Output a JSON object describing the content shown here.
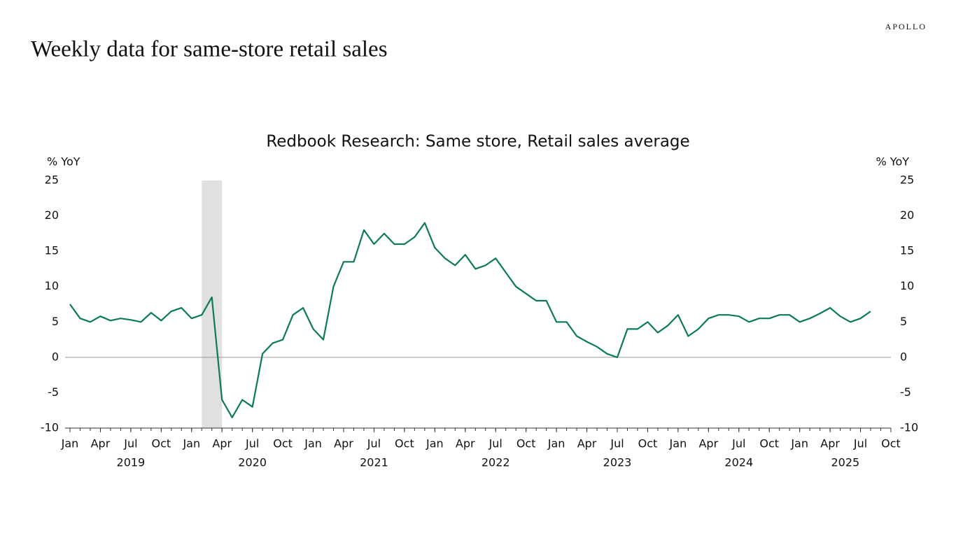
{
  "brand": "APOLLO",
  "header": {
    "title": "Weekly data for same-store retail sales"
  },
  "chart_data": {
    "type": "line",
    "title": "Redbook Research: Same store, Retail sales average",
    "ylabel": "% YoY",
    "y2label": "% YoY",
    "x": [
      "2019-01",
      "2019-02",
      "2019-03",
      "2019-04",
      "2019-05",
      "2019-06",
      "2019-07",
      "2019-08",
      "2019-09",
      "2019-10",
      "2019-11",
      "2019-12",
      "2020-01",
      "2020-02",
      "2020-03",
      "2020-04",
      "2020-05",
      "2020-06",
      "2020-07",
      "2020-08",
      "2020-09",
      "2020-10",
      "2020-11",
      "2020-12",
      "2021-01",
      "2021-02",
      "2021-03",
      "2021-04",
      "2021-05",
      "2021-06",
      "2021-07",
      "2021-08",
      "2021-09",
      "2021-10",
      "2021-11",
      "2021-12",
      "2022-01",
      "2022-02",
      "2022-03",
      "2022-04",
      "2022-05",
      "2022-06",
      "2022-07",
      "2022-08",
      "2022-09",
      "2022-10",
      "2022-11",
      "2022-12",
      "2023-01",
      "2023-02",
      "2023-03",
      "2023-04",
      "2023-05",
      "2023-06",
      "2023-07",
      "2023-08",
      "2023-09",
      "2023-10",
      "2023-11",
      "2023-12",
      "2024-01",
      "2024-02",
      "2024-03",
      "2024-04",
      "2024-05",
      "2024-06",
      "2024-07",
      "2024-08",
      "2024-09",
      "2024-10",
      "2024-11",
      "2024-12",
      "2025-01",
      "2025-02",
      "2025-03",
      "2025-04",
      "2025-05",
      "2025-06",
      "2025-07",
      "2025-08"
    ],
    "series": [
      {
        "name": "Redbook Research: Same store, Retail sales average",
        "color": "#0b7a5c",
        "values": [
          7.5,
          5.5,
          5.0,
          5.8,
          5.2,
          5.5,
          5.3,
          5.0,
          6.3,
          5.2,
          6.5,
          7.0,
          5.5,
          6.0,
          8.5,
          -6.0,
          -8.5,
          -6.0,
          -7.0,
          0.5,
          2.0,
          2.5,
          6.0,
          7.0,
          4.0,
          2.5,
          10.0,
          13.5,
          13.5,
          18.0,
          16.0,
          17.5,
          16.0,
          16.0,
          17.0,
          19.0,
          15.5,
          14.0,
          13.0,
          14.5,
          12.5,
          13.0,
          14.0,
          12.0,
          10.0,
          9.0,
          8.0,
          8.0,
          5.0,
          5.0,
          3.0,
          2.2,
          1.5,
          0.5,
          0.0,
          4.0,
          4.0,
          5.0,
          3.5,
          4.5,
          6.0,
          3.0,
          4.0,
          5.5,
          6.0,
          6.0,
          5.8,
          5.0,
          5.5,
          5.5,
          6.0,
          6.0,
          5.0,
          5.5,
          6.2,
          7.0,
          5.8,
          5.0,
          5.5,
          6.5
        ]
      }
    ],
    "xlim": [
      "2019-01",
      "2025-10"
    ],
    "xticks": [
      {
        "value": "2019-01",
        "label": "Jan"
      },
      {
        "value": "2019-04",
        "label": "Apr"
      },
      {
        "value": "2019-07",
        "label": "Jul"
      },
      {
        "value": "2019-10",
        "label": "Oct"
      },
      {
        "value": "2020-01",
        "label": "Jan"
      },
      {
        "value": "2020-04",
        "label": "Apr"
      },
      {
        "value": "2020-07",
        "label": "Jul"
      },
      {
        "value": "2020-10",
        "label": "Oct"
      },
      {
        "value": "2021-01",
        "label": "Jan"
      },
      {
        "value": "2021-04",
        "label": "Apr"
      },
      {
        "value": "2021-07",
        "label": "Jul"
      },
      {
        "value": "2021-10",
        "label": "Oct"
      },
      {
        "value": "2022-01",
        "label": "Jan"
      },
      {
        "value": "2022-04",
        "label": "Apr"
      },
      {
        "value": "2022-07",
        "label": "Jul"
      },
      {
        "value": "2022-10",
        "label": "Oct"
      },
      {
        "value": "2023-01",
        "label": "Jan"
      },
      {
        "value": "2023-04",
        "label": "Apr"
      },
      {
        "value": "2023-07",
        "label": "Jul"
      },
      {
        "value": "2023-10",
        "label": "Oct"
      },
      {
        "value": "2024-01",
        "label": "Jan"
      },
      {
        "value": "2024-04",
        "label": "Apr"
      },
      {
        "value": "2024-07",
        "label": "Jul"
      },
      {
        "value": "2024-10",
        "label": "Oct"
      },
      {
        "value": "2025-01",
        "label": "Jan"
      },
      {
        "value": "2025-04",
        "label": "Apr"
      },
      {
        "value": "2025-07",
        "label": "Jul"
      },
      {
        "value": "2025-10",
        "label": "Oct"
      }
    ],
    "years": [
      2019,
      2020,
      2021,
      2022,
      2023,
      2024,
      2025
    ],
    "ylim": [
      -10,
      25
    ],
    "yticks": [
      -10,
      -5,
      0,
      5,
      10,
      15,
      20,
      25
    ],
    "y2lim": [
      -10,
      25
    ],
    "y2ticks": [
      -10,
      -5,
      0,
      5,
      10,
      15,
      20,
      25
    ],
    "zero_line": true,
    "recession": {
      "start": "2020-02",
      "end": "2020-04",
      "color": "#e0e0e0"
    }
  }
}
